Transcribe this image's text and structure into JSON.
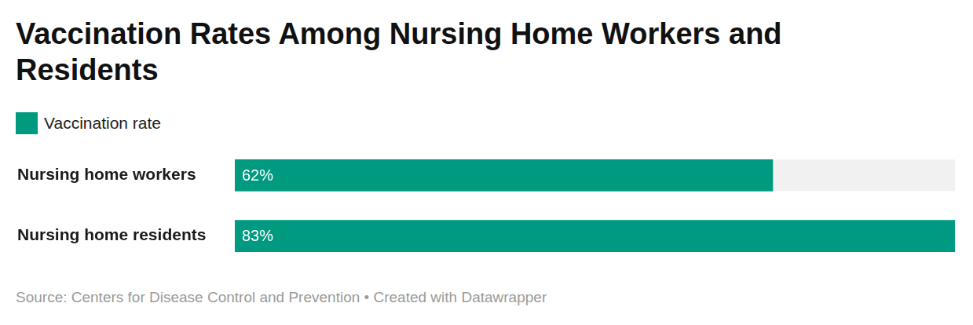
{
  "chart_data": {
    "type": "bar",
    "title": "Vaccination Rates Among Nursing Home Workers and Residents",
    "source": "Source: Centers for Disease Control and Prevention • Created with Datawrapper",
    "orientation": "horizontal",
    "categories": [
      "Nursing home workers",
      "Nursing home residents"
    ],
    "series": [
      {
        "name": "Vaccination rate",
        "color": "#009a80",
        "values": [
          62,
          83
        ],
        "value_labels": [
          "62%",
          "83%"
        ]
      }
    ],
    "xlim": [
      0,
      83
    ],
    "grid": false,
    "data_labels": true,
    "tick_labels": "y",
    "legend": "top-left"
  }
}
